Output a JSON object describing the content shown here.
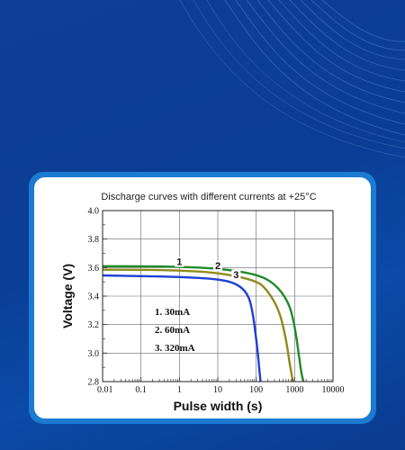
{
  "chart_data": {
    "type": "line",
    "title": "Discharge curves with different currents at +25°C",
    "xlabel": "Pulse width (s)",
    "ylabel": "Voltage (V)",
    "x_scale": "log",
    "xlim": [
      0.01,
      10000
    ],
    "ylim": [
      2.8,
      4.0
    ],
    "x_ticks": [
      "0.01",
      "0.1",
      "1",
      "10",
      "100",
      "1000",
      "10000"
    ],
    "y_ticks": [
      "2.8",
      "3.0",
      "3.2",
      "3.4",
      "3.6",
      "3.8",
      "4.0"
    ],
    "grid": true,
    "series": [
      {
        "name": "1. 30mA",
        "label": "1",
        "color": "#1f8a2a",
        "x": [
          0.01,
          0.1,
          1,
          10,
          100,
          300,
          700,
          1000,
          1300,
          1500,
          1700
        ],
        "y": [
          3.61,
          3.61,
          3.605,
          3.595,
          3.555,
          3.49,
          3.36,
          3.2,
          2.98,
          2.86,
          2.8
        ]
      },
      {
        "name": "2. 60mA",
        "label": "2",
        "color": "#8f8a1a",
        "x": [
          0.01,
          0.1,
          1,
          10,
          100,
          200,
          400,
          600,
          750,
          850,
          900
        ],
        "y": [
          3.585,
          3.585,
          3.58,
          3.565,
          3.51,
          3.44,
          3.3,
          3.1,
          2.92,
          2.84,
          2.8
        ]
      },
      {
        "name": "3. 320mA",
        "label": "3",
        "color": "#1f3fd6",
        "x": [
          0.01,
          0.1,
          1,
          10,
          30,
          60,
          80,
          100,
          115,
          125,
          130
        ],
        "y": [
          3.545,
          3.54,
          3.535,
          3.52,
          3.49,
          3.42,
          3.3,
          3.1,
          2.95,
          2.84,
          2.8
        ]
      }
    ],
    "legend": [
      "1. 30mA",
      "2. 60mA",
      "3. 320mA"
    ],
    "legend_position": "left-center"
  }
}
